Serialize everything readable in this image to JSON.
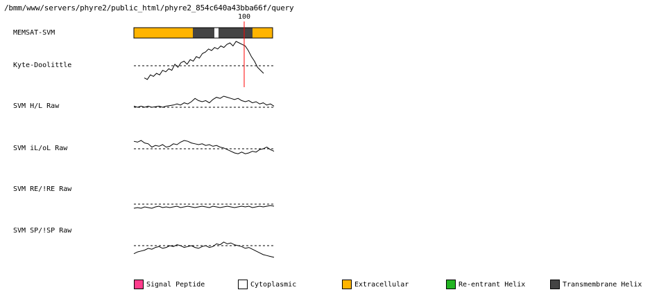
{
  "title": "/bmm/www/servers/phyre2/public_html/phyre2_854c640a43bba66f/query",
  "marker": {
    "label": "100",
    "color": "#ff0000"
  },
  "tracks": [
    {
      "id": "memsat",
      "label": "MEMSAT-SVM"
    },
    {
      "id": "kd",
      "label": "Kyte-Doolittle"
    },
    {
      "id": "hl",
      "label": "SVM H/L Raw"
    },
    {
      "id": "ilol",
      "label": "SVM iL/oL Raw"
    },
    {
      "id": "reire",
      "label": "SVM RE/!RE Raw"
    },
    {
      "id": "spisp",
      "label": "SVM SP/!SP Raw"
    }
  ],
  "memsat_segments": [
    {
      "type": "extracellular",
      "color": "#ffb400"
    },
    {
      "type": "transmembrane",
      "color": "#444444"
    },
    {
      "type": "cytoplasmic",
      "color": "#ffffff"
    },
    {
      "type": "transmembrane",
      "color": "#444444"
    },
    {
      "type": "extracellular",
      "color": "#ffb400"
    }
  ],
  "legend": [
    {
      "label": "Signal Peptide",
      "color": "#ff3c8c"
    },
    {
      "label": "Cytoplasmic",
      "color": "#ffffff"
    },
    {
      "label": "Extracellular",
      "color": "#ffb400"
    },
    {
      "label": "Re-entrant Helix",
      "color": "#22b422"
    },
    {
      "label": "Transmembrane Helix",
      "color": "#444444"
    }
  ],
  "chart_data": {
    "type": "line",
    "series": [
      {
        "values": [
          -0.8,
          -0.9,
          -0.6,
          -0.7,
          -0.5,
          -0.6,
          -0.3,
          -0.4,
          -0.2,
          -0.3,
          0.1,
          -0.1,
          0.2,
          0.3,
          0.1,
          0.4,
          0.3,
          0.6,
          0.5,
          0.8,
          0.9,
          1.1,
          1.0,
          1.2,
          1.1,
          1.3,
          1.2,
          1.4,
          1.5,
          1.3,
          1.6,
          1.5,
          1.4,
          1.3,
          1.0,
          0.6,
          0.3,
          -0.1,
          -0.3,
          -0.5
        ]
      },
      {
        "values": [
          0.1,
          0.0,
          0.1,
          0.0,
          0.1,
          0.0,
          0.05,
          0.1,
          0.0,
          0.1,
          0.15,
          0.2,
          0.3,
          0.2,
          0.4,
          0.3,
          0.5,
          0.8,
          0.6,
          0.5,
          0.6,
          0.4,
          0.7,
          0.9,
          0.8,
          1.0,
          0.9,
          0.8,
          0.7,
          0.8,
          0.6,
          0.5,
          0.6,
          0.4,
          0.5,
          0.3,
          0.4,
          0.2,
          0.3,
          0.1
        ]
      },
      {
        "values": [
          0.9,
          0.8,
          1.0,
          0.7,
          0.6,
          0.2,
          0.4,
          0.3,
          0.5,
          0.2,
          0.3,
          0.6,
          0.5,
          0.8,
          1.0,
          0.9,
          0.7,
          0.6,
          0.5,
          0.6,
          0.4,
          0.5,
          0.3,
          0.4,
          0.2,
          0.1,
          -0.1,
          -0.3,
          -0.5,
          -0.6,
          -0.4,
          -0.6,
          -0.5,
          -0.3,
          -0.4,
          -0.1,
          0.0,
          0.2,
          -0.1,
          -0.3
        ]
      },
      {
        "values": [
          -0.6,
          -0.5,
          -0.6,
          -0.4,
          -0.5,
          -0.6,
          -0.4,
          -0.3,
          -0.5,
          -0.4,
          -0.5,
          -0.4,
          -0.3,
          -0.5,
          -0.4,
          -0.3,
          -0.4,
          -0.5,
          -0.4,
          -0.3,
          -0.4,
          -0.5,
          -0.3,
          -0.4,
          -0.5,
          -0.4,
          -0.3,
          -0.4,
          -0.5,
          -0.4,
          -0.3,
          -0.4,
          -0.3,
          -0.5,
          -0.4,
          -0.3,
          -0.4,
          -0.3,
          -0.2,
          -0.3
        ]
      },
      {
        "values": [
          -0.9,
          -0.7,
          -0.6,
          -0.5,
          -0.3,
          -0.4,
          -0.2,
          -0.1,
          -0.3,
          -0.2,
          0.0,
          -0.1,
          0.1,
          0.0,
          -0.2,
          -0.1,
          0.0,
          -0.2,
          -0.3,
          -0.1,
          0.0,
          -0.2,
          -0.1,
          0.2,
          0.1,
          0.4,
          0.2,
          0.3,
          0.1,
          0.0,
          -0.1,
          -0.3,
          -0.2,
          -0.4,
          -0.6,
          -0.8,
          -1.0,
          -1.1,
          -1.2,
          -1.3
        ]
      }
    ]
  }
}
